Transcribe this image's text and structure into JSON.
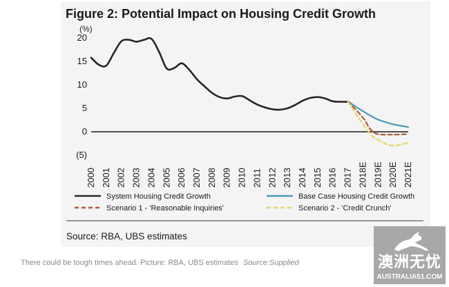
{
  "chart_data": {
    "type": "line",
    "title": "Figure 2:  Potential Impact on Housing Credit Growth",
    "ylabel": "(%)",
    "ylim": [
      -6,
      21
    ],
    "yticks": [
      20,
      15,
      10,
      5,
      0,
      -5
    ],
    "ytick_labels": [
      "20",
      "15",
      "10",
      "5",
      "0",
      "(5)"
    ],
    "categories": [
      "2000",
      "2001",
      "2002",
      "2003",
      "2004",
      "2005",
      "2006",
      "2007",
      "2008",
      "2009",
      "2010",
      "2011",
      "2012",
      "2013",
      "2014",
      "2015",
      "2016",
      "2017",
      "2018E",
      "2019E",
      "2020E",
      "2021E"
    ],
    "series": [
      {
        "name": "System Housing Credit Growth",
        "color": "#2b2320",
        "style": "solid",
        "x": [
          0,
          0.5,
          1,
          1.5,
          2,
          2.5,
          3,
          3.5,
          4,
          4.5,
          5,
          5.5,
          6,
          6.5,
          7,
          7.5,
          8,
          8.5,
          9,
          9.5,
          10,
          10.5,
          11,
          11.5,
          12,
          12.5,
          13,
          13.5,
          14,
          14.5,
          15,
          15.5,
          16,
          16.5,
          17
        ],
        "values": [
          15.8,
          14.3,
          14.1,
          16.8,
          19.3,
          19.6,
          19.2,
          19.6,
          19.8,
          17.0,
          13.5,
          13.6,
          14.6,
          13.2,
          11.2,
          9.7,
          8.3,
          7.4,
          7.1,
          7.5,
          7.6,
          6.7,
          5.8,
          5.2,
          4.8,
          4.7,
          5.0,
          5.7,
          6.6,
          7.2,
          7.4,
          7.1,
          6.5,
          6.4,
          6.4
        ]
      },
      {
        "name": "Base Case Housing Credit Growth",
        "color": "#4a9ab8",
        "style": "solid",
        "x": [
          17,
          18,
          19,
          20,
          21
        ],
        "values": [
          6.5,
          4.4,
          2.6,
          1.6,
          1.0
        ]
      },
      {
        "name": "Scenario 1 - 'Reasonable Inquiries'",
        "color": "#b1593a",
        "style": "dashed",
        "x": [
          17,
          18,
          18.5,
          19,
          20,
          21
        ],
        "values": [
          6.5,
          3.0,
          0.5,
          -0.5,
          -0.6,
          -0.5
        ]
      },
      {
        "name": "Scenario 2 - 'Credit Crunch'",
        "color": "#e8d36a",
        "style": "dashed",
        "x": [
          17,
          17.7,
          18.5,
          19,
          19.7,
          20.3,
          21
        ],
        "values": [
          6.5,
          3.0,
          -0.5,
          -1.7,
          -2.8,
          -2.9,
          -2.3
        ]
      }
    ],
    "legend_position": "bottom",
    "source": "Source:  RBA, UBS estimates"
  },
  "caption": {
    "text": "There could be tough times ahead. Picture: RBA, UBS estimates",
    "credit": "Source:Supplied"
  },
  "watermark": {
    "chinese": "澳洲无忧",
    "english": "AUSTRALIA51.COM"
  }
}
